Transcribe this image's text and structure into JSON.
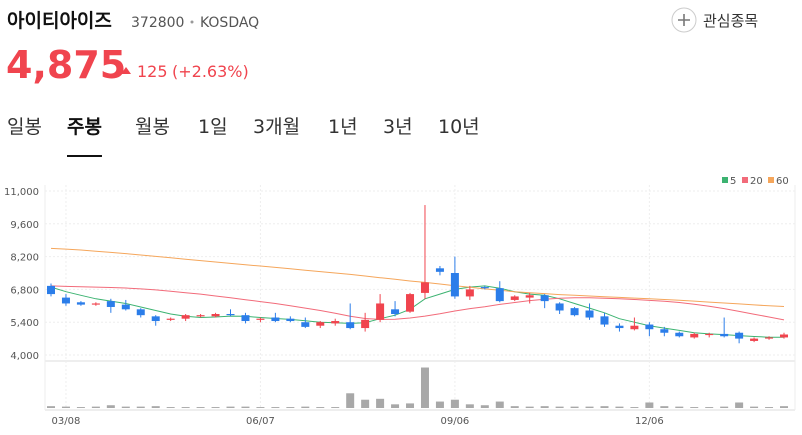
{
  "header": {
    "name": "아이티아이즈",
    "code": "372800",
    "market": "KOSDAQ",
    "watch": "관심종목",
    "price": "4,875",
    "change": "125",
    "change_pct": "(+2.63%)"
  },
  "tabs": [
    "일봉",
    "주봉",
    "월봉",
    "1일",
    "3개월",
    "1년",
    "3년",
    "10년"
  ],
  "active_tab": 1,
  "chart_data": {
    "type": "candlestick",
    "categories": [
      null,
      "03/08",
      null,
      null,
      null,
      null,
      null,
      null,
      null,
      null,
      null,
      null,
      null,
      null,
      "06/07",
      null,
      null,
      null,
      null,
      null,
      null,
      null,
      null,
      null,
      null,
      null,
      null,
      "09/06",
      null,
      null,
      null,
      null,
      null,
      null,
      null,
      null,
      null,
      null,
      null,
      null,
      "12/06",
      null,
      null,
      null,
      null,
      null,
      null,
      null,
      null,
      null
    ],
    "open": [
      6950,
      6450,
      6250,
      6150,
      6300,
      6150,
      5950,
      5650,
      5500,
      5550,
      5650,
      5650,
      5750,
      5700,
      5500,
      5600,
      5550,
      5400,
      5250,
      5350,
      5400,
      5150,
      5500,
      5950,
      5850,
      6650,
      7700,
      7500,
      6500,
      6900,
      6850,
      6350,
      6450,
      6550,
      6200,
      6000,
      5900,
      5650,
      5250,
      5100,
      5300,
      5100,
      4950,
      4750,
      4850,
      4900,
      4950,
      4600,
      4700,
      4750
    ],
    "high": [
      7050,
      6600,
      6300,
      6250,
      6400,
      6350,
      6000,
      5700,
      5600,
      5750,
      5750,
      5800,
      5950,
      5800,
      5600,
      5800,
      5650,
      5600,
      5450,
      5550,
      6200,
      5800,
      6600,
      6300,
      6650,
      10400,
      7800,
      8200,
      6950,
      6950,
      7150,
      6550,
      6650,
      6600,
      6250,
      6050,
      6200,
      5800,
      5350,
      5600,
      5400,
      5200,
      5000,
      4950,
      4950,
      5600,
      5000,
      4750,
      4800,
      4950
    ],
    "low": [
      6500,
      6100,
      6100,
      6100,
      5800,
      5900,
      5600,
      5250,
      5450,
      5450,
      5600,
      5600,
      5650,
      5350,
      5400,
      5400,
      5400,
      5150,
      5150,
      5250,
      5100,
      5000,
      5400,
      5650,
      5800,
      6400,
      7400,
      6400,
      6350,
      6800,
      6250,
      6300,
      6200,
      6000,
      5750,
      5650,
      5500,
      5200,
      5000,
      5050,
      4800,
      4800,
      4750,
      4700,
      4750,
      4750,
      4500,
      4550,
      4650,
      4700
    ],
    "close": [
      6600,
      6200,
      6150,
      6200,
      6050,
      5950,
      5700,
      5450,
      5550,
      5700,
      5700,
      5750,
      5700,
      5450,
      5550,
      5450,
      5450,
      5200,
      5400,
      5450,
      5150,
      5500,
      6200,
      5750,
      6600,
      7100,
      7550,
      6500,
      6800,
      6850,
      6300,
      6500,
      6550,
      6300,
      5900,
      5700,
      5600,
      5300,
      5150,
      5250,
      5100,
      4950,
      4800,
      4900,
      4900,
      4800,
      4700,
      4700,
      4750,
      4875
    ],
    "up_color": "#f0444e",
    "down_color": "#2b7de9",
    "series": [
      {
        "name": "5",
        "color": "#3cb371",
        "values": [
          6900,
          6700,
          6550,
          6400,
          6300,
          6200,
          6050,
          5900,
          5750,
          5650,
          5600,
          5620,
          5660,
          5650,
          5600,
          5560,
          5520,
          5460,
          5400,
          5380,
          5350,
          5380,
          5550,
          5700,
          5950,
          6400,
          6600,
          6800,
          6900,
          6950,
          6850,
          6700,
          6600,
          6550,
          6400,
          6200,
          6000,
          5800,
          5550,
          5400,
          5250,
          5150,
          5050,
          4950,
          4900,
          4870,
          4830,
          4790,
          4760,
          4760
        ]
      },
      {
        "name": "20",
        "color": "#f26b7a",
        "values": [
          6950,
          6930,
          6910,
          6900,
          6880,
          6860,
          6820,
          6780,
          6720,
          6660,
          6600,
          6520,
          6440,
          6360,
          6280,
          6200,
          6100,
          6000,
          5900,
          5780,
          5650,
          5560,
          5520,
          5530,
          5580,
          5660,
          5760,
          5880,
          5980,
          6060,
          6160,
          6240,
          6320,
          6380,
          6420,
          6440,
          6440,
          6420,
          6400,
          6370,
          6330,
          6290,
          6240,
          6170,
          6080,
          5980,
          5860,
          5740,
          5620,
          5500
        ]
      },
      {
        "name": "60",
        "color": "#f5a65b",
        "values": [
          8550,
          8520,
          8480,
          8430,
          8380,
          8330,
          8270,
          8210,
          8150,
          8090,
          8030,
          7970,
          7910,
          7850,
          7800,
          7740,
          7680,
          7620,
          7560,
          7500,
          7440,
          7370,
          7300,
          7230,
          7160,
          7100,
          7030,
          6960,
          6890,
          6820,
          6760,
          6700,
          6660,
          6620,
          6580,
          6550,
          6520,
          6490,
          6460,
          6430,
          6400,
          6370,
          6340,
          6300,
          6260,
          6220,
          6180,
          6140,
          6100,
          6070
        ]
      }
    ],
    "ylim": [
      4000,
      11000
    ],
    "yticks": [
      {
        "value": 4000,
        "label": "4,000"
      },
      {
        "value": 5400,
        "label": "5,400"
      },
      {
        "value": 6800,
        "label": "6,800"
      },
      {
        "value": 8200,
        "label": "8,200"
      },
      {
        "value": 9600,
        "label": "9,600"
      },
      {
        "value": 11000,
        "label": "11,000"
      }
    ],
    "grid": true,
    "volume": {
      "color": "#a8a8a8",
      "ylim": [
        0,
        100
      ],
      "values": [
        4,
        3,
        2,
        3,
        6,
        3,
        3,
        4,
        2,
        2,
        2,
        2,
        3,
        3,
        2,
        2,
        2,
        3,
        2,
        2,
        32,
        18,
        20,
        8,
        10,
        88,
        14,
        18,
        8,
        6,
        14,
        4,
        3,
        4,
        3,
        3,
        3,
        4,
        3,
        2,
        12,
        4,
        3,
        2,
        2,
        3,
        12,
        3,
        2,
        4
      ]
    }
  }
}
